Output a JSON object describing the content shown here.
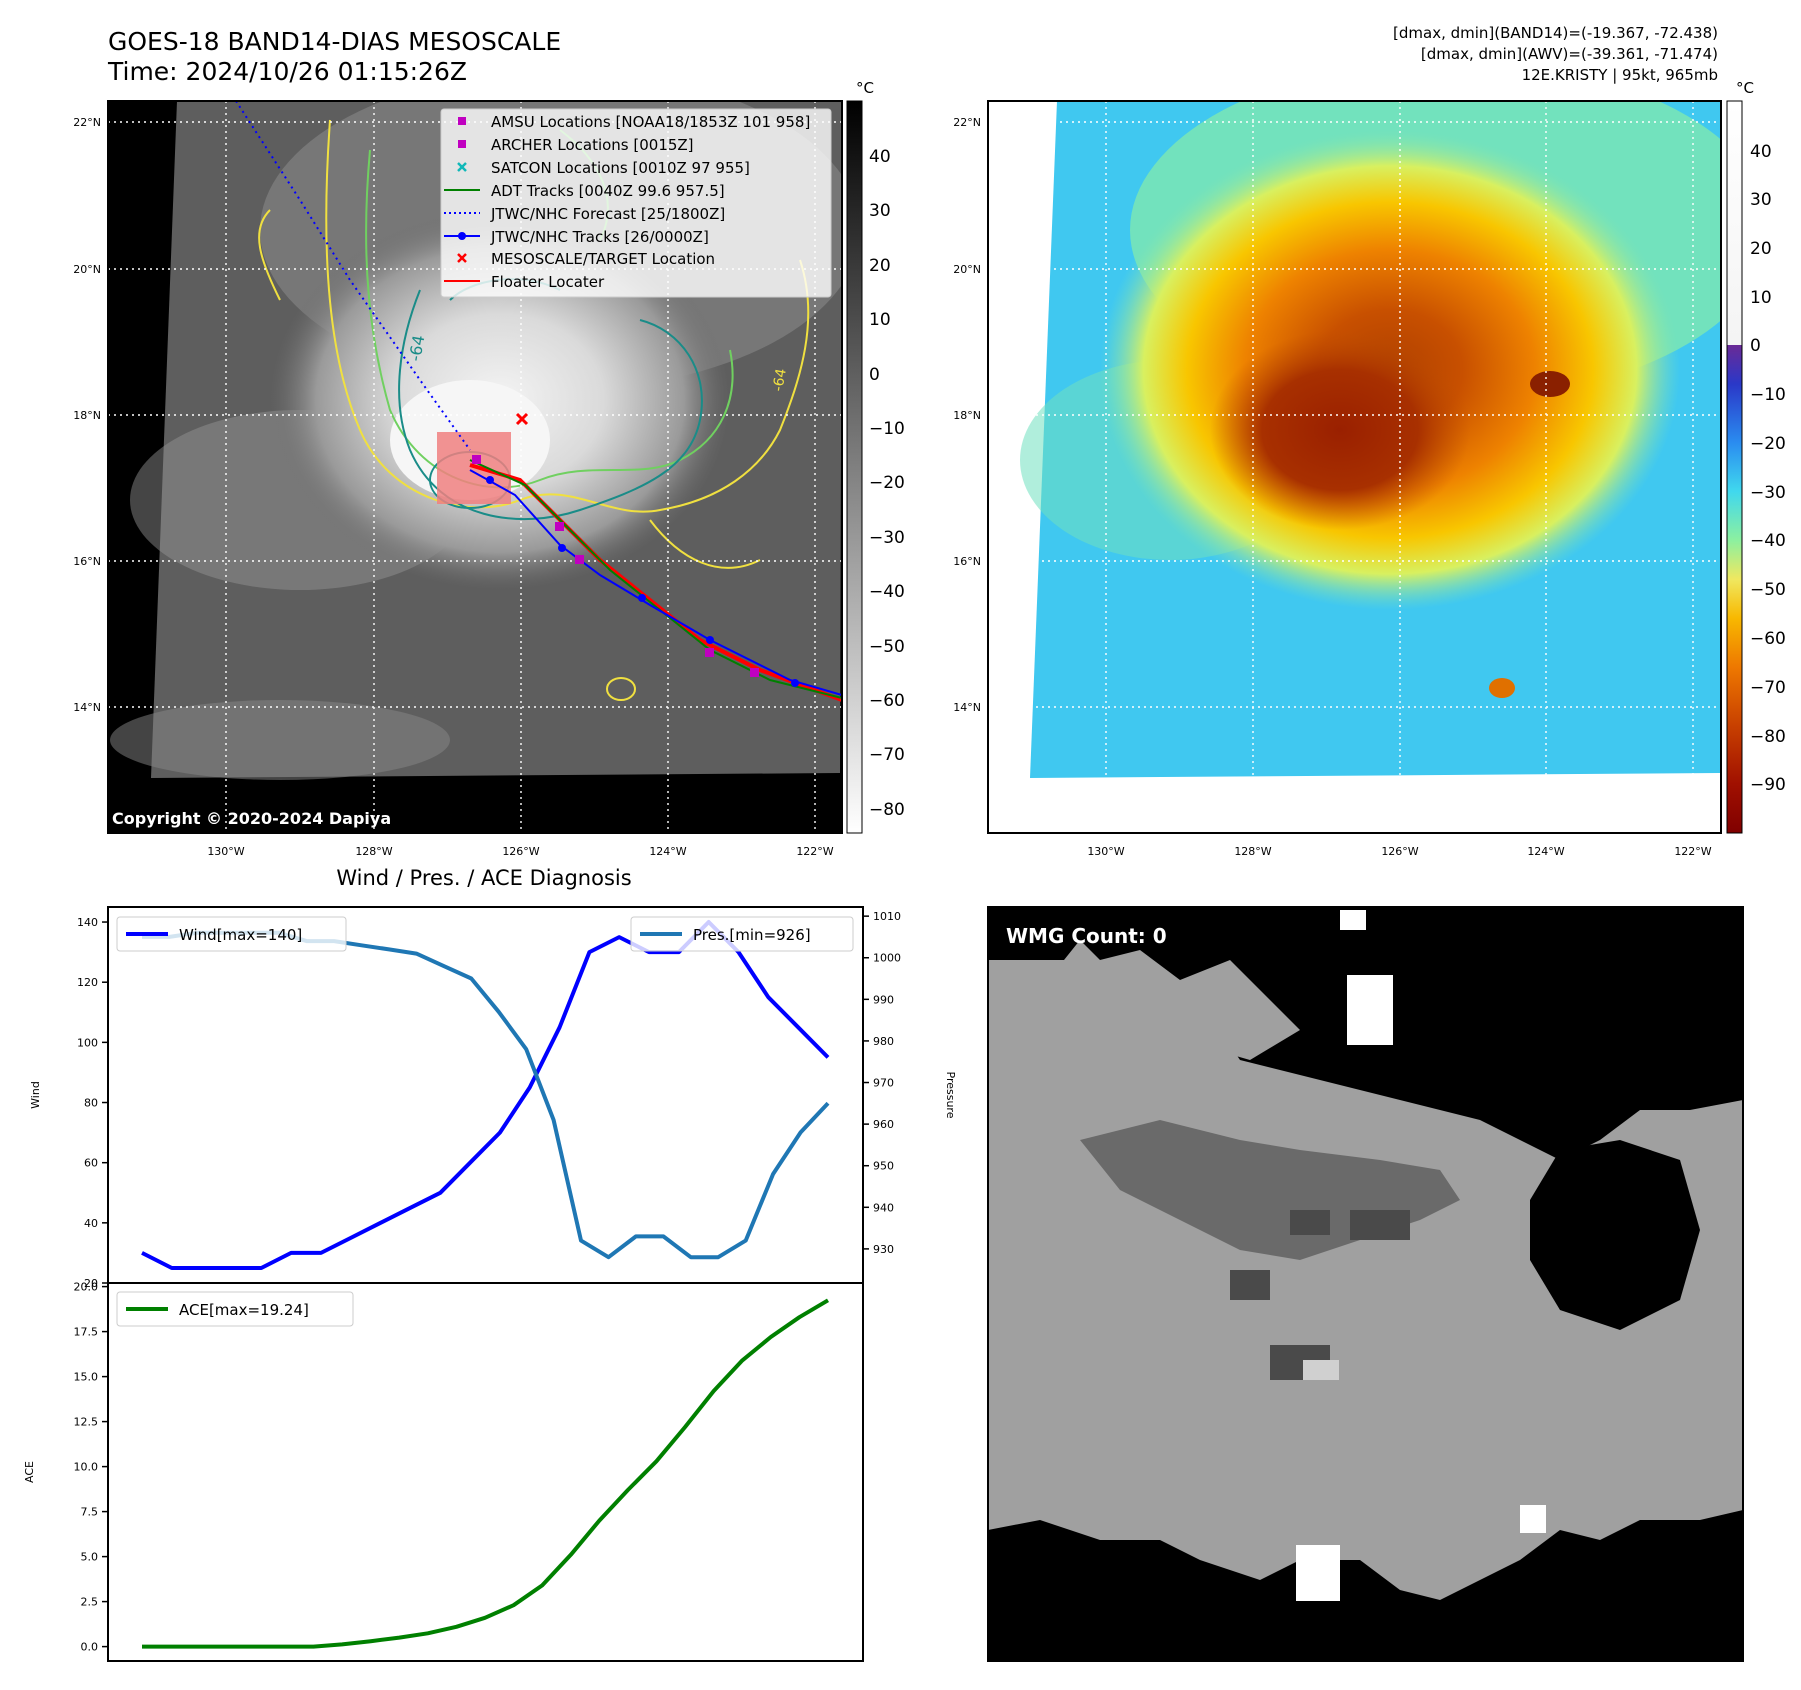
{
  "header": {
    "title_line1": "GOES-18 BAND14-DIAS MESOSCALE",
    "title_line2": "Time: 2024/10/26 01:15:26Z",
    "info_line1": "[dmax, dmin](BAND14)=(-19.367, -72.438)",
    "info_line2": "[dmax, dmin](AWV)=(-39.361, -71.474)",
    "info_line3": "12E.KRISTY | 95kt, 965mb"
  },
  "map_ir": {
    "lat_labels": [
      "22°N",
      "20°N",
      "18°N",
      "16°N",
      "14°N"
    ],
    "lon_labels": [
      "130°W",
      "128°W",
      "126°W",
      "124°W",
      "122°W"
    ],
    "contour_label": "-64",
    "contour_label_2": "-64",
    "copyright": "Copyright © 2020-2024 Dapiya",
    "legend": [
      {
        "label": "AMSU Locations [NOAA18/1853Z 101 958]",
        "marker": "square",
        "color": "#c000c0"
      },
      {
        "label": "ARCHER Locations [0015Z]",
        "marker": "square",
        "color": "#c000c0"
      },
      {
        "label": "SATCON Locations [0010Z 97 955]",
        "marker": "x",
        "color": "#10b8b8"
      },
      {
        "label": "ADT Tracks [0040Z 99.6 957.5]",
        "marker": "line",
        "color": "#008000"
      },
      {
        "label": "JTWC/NHC Forecast [25/1800Z]",
        "marker": "dotted",
        "color": "#0000ff"
      },
      {
        "label": "JTWC/NHC Tracks [26/0000Z]",
        "marker": "line-dot",
        "color": "#0000ff"
      },
      {
        "label": "MESOSCALE/TARGET Location",
        "marker": "x",
        "color": "#ff0000"
      },
      {
        "label": "Floater Locater",
        "marker": "line",
        "color": "#ff0000"
      }
    ],
    "colorbar": {
      "unit": "°C",
      "ticks": [
        "40",
        "30",
        "20",
        "10",
        "0",
        "−10",
        "−20",
        "−30",
        "−40",
        "−50",
        "−60",
        "−70",
        "−80"
      ]
    }
  },
  "map_awv": {
    "lat_labels": [
      "22°N",
      "20°N",
      "18°N",
      "16°N",
      "14°N"
    ],
    "lon_labels": [
      "130°W",
      "128°W",
      "126°W",
      "124°W",
      "122°W"
    ],
    "colorbar": {
      "unit": "°C",
      "ticks": [
        "40",
        "30",
        "20",
        "10",
        "0",
        "−10",
        "−20",
        "−30",
        "−40",
        "−50",
        "−60",
        "−70",
        "−80",
        "−90"
      ]
    }
  },
  "wmg": {
    "label": "WMG Count: 0"
  },
  "chart_data": [
    {
      "type": "line",
      "title": "Wind / Pres. / ACE Diagnosis",
      "ylabel": "Wind",
      "y2label": "Pressure",
      "ylim": [
        20,
        145
      ],
      "y2lim": [
        921.8,
        1012.2
      ],
      "yticks": [
        20,
        40,
        60,
        80,
        100,
        120,
        140
      ],
      "y2ticks": [
        930,
        940,
        950,
        960,
        970,
        980,
        990,
        1000,
        1010
      ],
      "series": [
        {
          "name": "Wind[max=140]",
          "axis": "left",
          "color": "#0000ff",
          "values": [
            30,
            25,
            25,
            25,
            25,
            30,
            30,
            35,
            40,
            45,
            50,
            60,
            70,
            85,
            105,
            130,
            135,
            130,
            130,
            140,
            130,
            115,
            105,
            95
          ]
        },
        {
          "name": "Pres.[min=926]",
          "axis": "right",
          "color": "#1f77b4",
          "values": [
            1005,
            1005,
            1006,
            1006,
            1006,
            1006,
            1004,
            1004,
            1003,
            1002,
            1001,
            998,
            995,
            987,
            978,
            961,
            932,
            928,
            933,
            933,
            928,
            928,
            932,
            948,
            958,
            965
          ]
        }
      ]
    },
    {
      "type": "line",
      "ylabel": "ACE",
      "ylim": [
        -0.8,
        20.2
      ],
      "yticks": [
        "0.0",
        "2.5",
        "5.0",
        "7.5",
        "10.0",
        "12.5",
        "15.0",
        "17.5",
        "20.0"
      ],
      "series": [
        {
          "name": "ACE[max=19.24]",
          "color": "#008000",
          "values": [
            0,
            0,
            0,
            0,
            0,
            0,
            0,
            0.12,
            0.3,
            0.5,
            0.74,
            1.1,
            1.6,
            2.3,
            3.4,
            5.1,
            7,
            8.7,
            10.3,
            12.2,
            14.2,
            15.9,
            17.2,
            18.3,
            19.24
          ]
        }
      ]
    }
  ]
}
